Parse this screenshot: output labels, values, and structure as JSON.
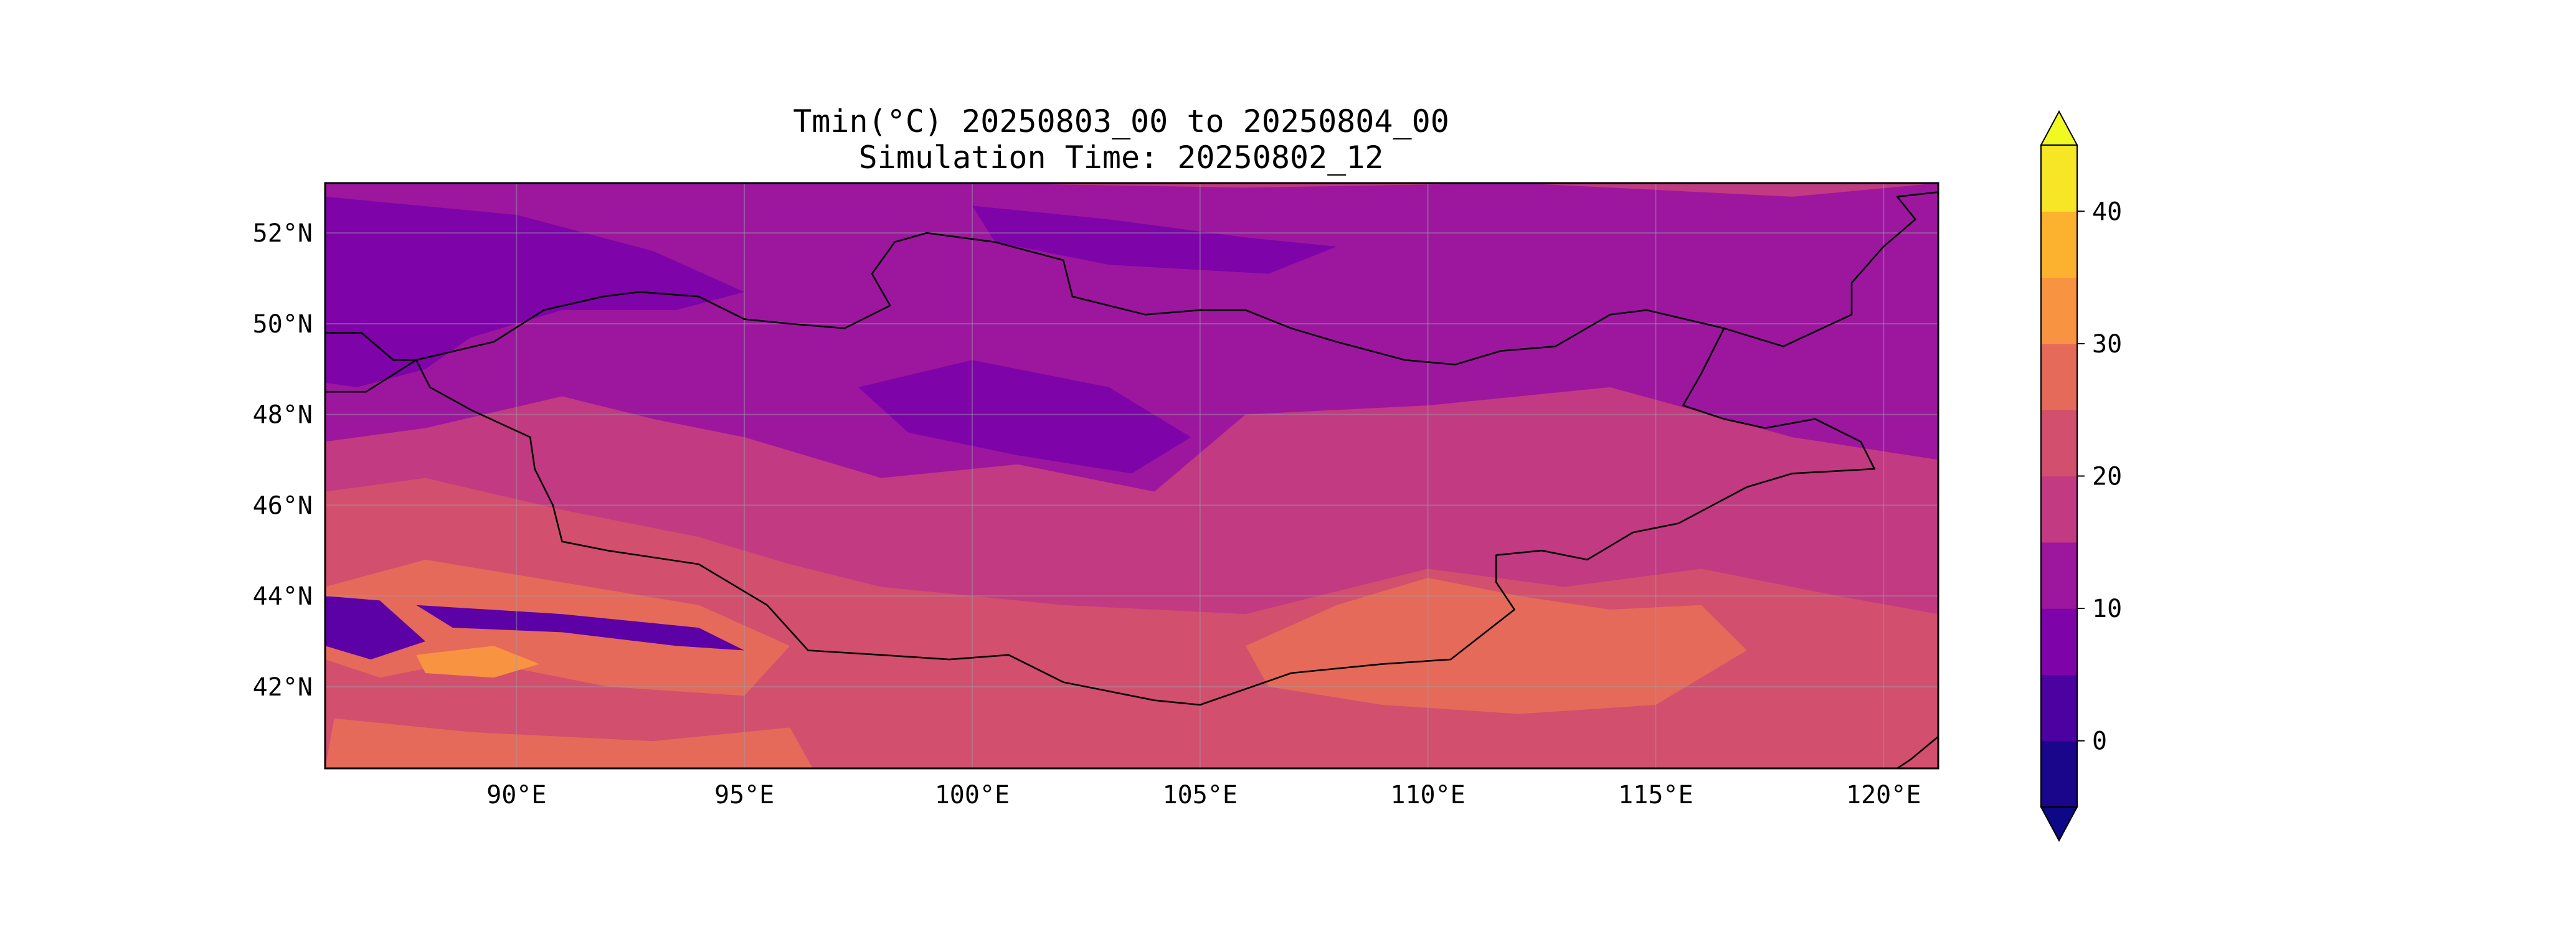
{
  "figure": {
    "title_line1": "Tmin(°C) 20250803_00 to 20250804_00",
    "title_line2": "Simulation Time: 20250802_12"
  },
  "map": {
    "lon_range": [
      85.8,
      121.2
    ],
    "lat_range": [
      40.2,
      53.1
    ],
    "lon_ticks": [
      {
        "value": 90,
        "label": "90°E"
      },
      {
        "value": 95,
        "label": "95°E"
      },
      {
        "value": 100,
        "label": "100°E"
      },
      {
        "value": 105,
        "label": "105°E"
      },
      {
        "value": 110,
        "label": "110°E"
      },
      {
        "value": 115,
        "label": "115°E"
      },
      {
        "value": 120,
        "label": "120°E"
      }
    ],
    "lat_ticks": [
      {
        "value": 42,
        "label": "42°N"
      },
      {
        "value": 44,
        "label": "44°N"
      },
      {
        "value": 46,
        "label": "46°N"
      },
      {
        "value": 48,
        "label": "48°N"
      },
      {
        "value": 50,
        "label": "50°N"
      },
      {
        "value": 52,
        "label": "52°N"
      }
    ],
    "gridlines": true,
    "colormap": "plasma",
    "background_color": "#c23a81",
    "field_patches": [
      {
        "name": "warm-band-southwest",
        "color": "#d24f6d",
        "lonlat": [
          [
            85.8,
            46.3
          ],
          [
            88,
            46.6
          ],
          [
            91,
            45.9
          ],
          [
            94,
            45.3
          ],
          [
            96,
            44.7
          ],
          [
            98,
            44.2
          ],
          [
            102,
            43.8
          ],
          [
            106,
            43.6
          ],
          [
            110,
            44.6
          ],
          [
            113,
            44.2
          ],
          [
            116,
            44.6
          ],
          [
            119,
            44.0
          ],
          [
            121.2,
            43.6
          ],
          [
            121.2,
            40.2
          ],
          [
            85.8,
            40.2
          ]
        ]
      },
      {
        "name": "warm-patch-west",
        "color": "#e56a5a",
        "lonlat": [
          [
            85.8,
            44.2
          ],
          [
            88,
            44.8
          ],
          [
            91,
            44.3
          ],
          [
            94,
            43.8
          ],
          [
            96,
            42.9
          ],
          [
            95,
            41.8
          ],
          [
            92,
            42.0
          ],
          [
            89,
            42.6
          ],
          [
            87,
            42.2
          ],
          [
            85.8,
            42.6
          ]
        ]
      },
      {
        "name": "warm-patch-gobi",
        "color": "#e56a5a",
        "lonlat": [
          [
            106,
            42.9
          ],
          [
            108,
            43.8
          ],
          [
            110,
            44.4
          ],
          [
            112,
            44.0
          ],
          [
            114,
            43.7
          ],
          [
            116,
            43.8
          ],
          [
            117,
            42.8
          ],
          [
            115,
            41.6
          ],
          [
            112,
            41.4
          ],
          [
            109,
            41.6
          ],
          [
            106.5,
            42.0
          ]
        ]
      },
      {
        "name": "warm-patch-south",
        "color": "#e56a5a",
        "lonlat": [
          [
            86,
            41.3
          ],
          [
            89,
            41.0
          ],
          [
            93,
            40.8
          ],
          [
            96,
            41.1
          ],
          [
            96.5,
            40.2
          ],
          [
            85.8,
            40.2
          ]
        ]
      },
      {
        "name": "hot-patch-west",
        "color": "#f89441",
        "lonlat": [
          [
            87.8,
            42.7
          ],
          [
            89.5,
            42.9
          ],
          [
            90.5,
            42.5
          ],
          [
            89.5,
            42.2
          ],
          [
            88,
            42.3
          ]
        ]
      },
      {
        "name": "cool-region-northwest",
        "color": "#9c179e",
        "lonlat": [
          [
            85.8,
            53.1
          ],
          [
            94,
            53.1
          ],
          [
            100,
            53.1
          ],
          [
            106,
            53.0
          ],
          [
            112,
            53.1
          ],
          [
            118,
            52.8
          ],
          [
            121.2,
            53.1
          ],
          [
            121.2,
            47.0
          ],
          [
            118,
            47.5
          ],
          [
            114,
            48.6
          ],
          [
            110,
            48.2
          ],
          [
            106,
            48.0
          ],
          [
            104,
            46.3
          ],
          [
            101,
            46.9
          ],
          [
            98,
            46.6
          ],
          [
            95,
            47.5
          ],
          [
            93,
            47.9
          ],
          [
            91,
            48.4
          ],
          [
            88,
            47.7
          ],
          [
            85.8,
            47.4
          ]
        ]
      },
      {
        "name": "cold-patch-altai",
        "color": "#7e03a8",
        "lonlat": [
          [
            85.8,
            52.8
          ],
          [
            90,
            52.4
          ],
          [
            93,
            51.6
          ],
          [
            95,
            50.7
          ],
          [
            93.5,
            50.3
          ],
          [
            91,
            50.3
          ],
          [
            89,
            49.7
          ],
          [
            88,
            49.0
          ],
          [
            86.5,
            48.6
          ],
          [
            85.8,
            48.7
          ]
        ]
      },
      {
        "name": "cold-patch-khangai",
        "color": "#7e03a8",
        "lonlat": [
          [
            97.5,
            48.6
          ],
          [
            100,
            49.2
          ],
          [
            103,
            48.6
          ],
          [
            104.8,
            47.5
          ],
          [
            103.5,
            46.7
          ],
          [
            101,
            47.1
          ],
          [
            98.6,
            47.6
          ]
        ]
      },
      {
        "name": "cold-patch-north",
        "color": "#7e03a8",
        "lonlat": [
          [
            100,
            52.6
          ],
          [
            103,
            52.3
          ],
          [
            106,
            51.9
          ],
          [
            108,
            51.7
          ],
          [
            106.5,
            51.1
          ],
          [
            103,
            51.3
          ],
          [
            100.5,
            51.8
          ]
        ]
      },
      {
        "name": "very-cold-west",
        "color": "#5c01a6",
        "lonlat": [
          [
            85.8,
            44.0
          ],
          [
            87,
            43.9
          ],
          [
            88,
            43.0
          ],
          [
            86.8,
            42.6
          ],
          [
            85.8,
            42.9
          ]
        ]
      },
      {
        "name": "very-cold-mountains",
        "color": "#5c01a6",
        "lonlat": [
          [
            87.8,
            43.8
          ],
          [
            91,
            43.6
          ],
          [
            94,
            43.3
          ],
          [
            95,
            42.8
          ],
          [
            93.5,
            42.9
          ],
          [
            91,
            43.2
          ],
          [
            88.6,
            43.3
          ]
        ]
      }
    ],
    "borders": [
      {
        "name": "mongolia-border",
        "lonlat": [
          [
            87.8,
            49.2
          ],
          [
            89.5,
            49.6
          ],
          [
            90.6,
            50.3
          ],
          [
            91.9,
            50.6
          ],
          [
            92.7,
            50.7
          ],
          [
            94.0,
            50.6
          ],
          [
            95.0,
            50.1
          ],
          [
            96.0,
            50.0
          ],
          [
            97.2,
            49.9
          ],
          [
            98.2,
            50.4
          ],
          [
            97.8,
            51.1
          ],
          [
            98.3,
            51.8
          ],
          [
            99.0,
            52.0
          ],
          [
            100.5,
            51.8
          ],
          [
            102.0,
            51.4
          ],
          [
            102.2,
            50.6
          ],
          [
            103.8,
            50.2
          ],
          [
            105.0,
            50.3
          ],
          [
            106.0,
            50.3
          ],
          [
            107.0,
            49.9
          ],
          [
            108.0,
            49.6
          ],
          [
            109.5,
            49.2
          ],
          [
            110.6,
            49.1
          ],
          [
            111.6,
            49.4
          ],
          [
            112.8,
            49.5
          ],
          [
            114.0,
            50.2
          ],
          [
            114.8,
            50.3
          ],
          [
            116.5,
            49.9
          ],
          [
            116.0,
            48.9
          ],
          [
            115.6,
            48.2
          ],
          [
            116.5,
            47.9
          ],
          [
            117.4,
            47.7
          ],
          [
            118.5,
            47.9
          ],
          [
            119.5,
            47.4
          ],
          [
            119.8,
            46.8
          ],
          [
            118.0,
            46.7
          ],
          [
            117.0,
            46.4
          ],
          [
            115.5,
            45.6
          ],
          [
            114.5,
            45.4
          ],
          [
            113.5,
            44.8
          ],
          [
            112.5,
            45.0
          ],
          [
            111.5,
            44.9
          ],
          [
            111.5,
            44.3
          ],
          [
            111.9,
            43.7
          ],
          [
            110.5,
            42.6
          ],
          [
            109.0,
            42.5
          ],
          [
            107.0,
            42.3
          ],
          [
            105.0,
            41.6
          ],
          [
            104.0,
            41.7
          ],
          [
            102.0,
            42.1
          ],
          [
            100.8,
            42.7
          ],
          [
            99.5,
            42.6
          ],
          [
            98.0,
            42.7
          ],
          [
            96.4,
            42.8
          ],
          [
            95.5,
            43.8
          ],
          [
            94.0,
            44.7
          ],
          [
            92.0,
            45.0
          ],
          [
            91.0,
            45.2
          ],
          [
            90.8,
            46.0
          ],
          [
            90.4,
            46.8
          ],
          [
            90.3,
            47.5
          ],
          [
            89.0,
            48.1
          ],
          [
            88.1,
            48.6
          ],
          [
            87.8,
            49.2
          ]
        ]
      },
      {
        "name": "kazakhstan-russia-border",
        "lonlat": [
          [
            85.8,
            49.8
          ],
          [
            86.6,
            49.8
          ],
          [
            87.3,
            49.2
          ],
          [
            87.8,
            49.2
          ]
        ]
      },
      {
        "name": "kazakhstan-china-border",
        "lonlat": [
          [
            85.8,
            48.5
          ],
          [
            86.7,
            48.5
          ],
          [
            87.8,
            49.2
          ]
        ]
      },
      {
        "name": "china-russia-northeast-border",
        "lonlat": [
          [
            116.5,
            49.9
          ],
          [
            117.8,
            49.5
          ],
          [
            119.3,
            50.2
          ],
          [
            119.3,
            50.9
          ],
          [
            120.0,
            51.7
          ],
          [
            120.7,
            52.3
          ],
          [
            120.3,
            52.8
          ],
          [
            121.2,
            52.9
          ]
        ]
      },
      {
        "name": "china-north-korea-border",
        "lonlat": [
          [
            121.2,
            40.9
          ],
          [
            120.6,
            40.4
          ],
          [
            120.3,
            40.2
          ]
        ]
      }
    ]
  },
  "colorbar": {
    "levels": [
      -5,
      0,
      5,
      10,
      15,
      20,
      25,
      30,
      35,
      40,
      45
    ],
    "colors": [
      "#1a068b",
      "#4c02a1",
      "#7e03a8",
      "#9c179e",
      "#c23a81",
      "#d24f6d",
      "#e56a5a",
      "#f89441",
      "#fdb22f",
      "#f6e626"
    ],
    "under_color": "#0d0887",
    "over_color": "#f0f921",
    "ticks": [
      {
        "value": 0,
        "label": "0"
      },
      {
        "value": 10,
        "label": "10"
      },
      {
        "value": 20,
        "label": "20"
      },
      {
        "value": 30,
        "label": "30"
      },
      {
        "value": 40,
        "label": "40"
      }
    ]
  }
}
